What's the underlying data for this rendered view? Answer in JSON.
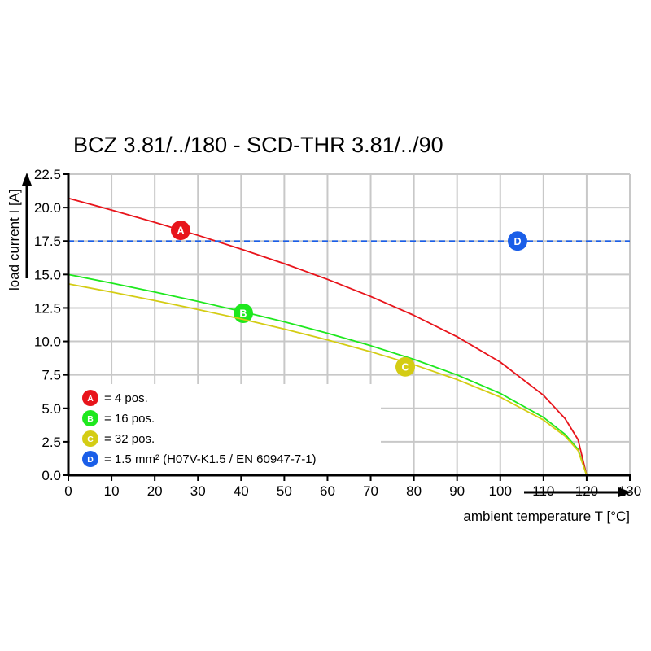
{
  "chart_data": {
    "type": "line",
    "title": "BCZ 3.81/../180 - SCD-THR 3.81/../90",
    "xlabel": "ambient temperature T [°C]",
    "ylabel": "load current I [A]",
    "xlim": [
      0,
      130
    ],
    "ylim": [
      0,
      22.5
    ],
    "xticks": [
      "0",
      "10",
      "20",
      "30",
      "40",
      "50",
      "60",
      "70",
      "80",
      "90",
      "100",
      "110",
      "120",
      "130"
    ],
    "yticks": [
      "0.0",
      "2.5",
      "5.0",
      "7.5",
      "10.0",
      "12.5",
      "15.0",
      "17.5",
      "20.0",
      "22.5"
    ],
    "grid": true,
    "legend_placement": "bottom-left",
    "x": [
      0,
      10,
      20,
      30,
      40,
      50,
      60,
      70,
      80,
      90,
      100,
      110,
      115,
      118,
      120
    ],
    "series": [
      {
        "marker": "A",
        "color": "#e8141b",
        "label_point": [
          26,
          18.3
        ],
        "values": [
          20.7,
          19.82,
          18.9,
          17.93,
          16.9,
          15.81,
          14.64,
          13.36,
          11.95,
          10.35,
          8.45,
          5.98,
          4.23,
          2.67,
          0
        ]
      },
      {
        "marker": "B",
        "color": "#1ee81e",
        "label_point": [
          40.5,
          12.1
        ],
        "values": [
          15.0,
          14.36,
          13.69,
          12.99,
          12.25,
          11.46,
          10.61,
          9.68,
          8.66,
          7.5,
          6.12,
          4.33,
          3.06,
          1.94,
          0
        ]
      },
      {
        "marker": "C",
        "color": "#d4cc14",
        "label_point": [
          78,
          8.1
        ],
        "values": [
          14.3,
          13.69,
          13.05,
          12.38,
          11.68,
          10.92,
          10.11,
          9.23,
          8.26,
          7.15,
          5.84,
          4.13,
          2.92,
          1.85,
          0
        ]
      },
      {
        "marker": "D",
        "color": "#1a5ee8",
        "dashed": true,
        "label_point": [
          104,
          17.5
        ],
        "constant": 17.5
      }
    ],
    "legend": [
      {
        "marker": "A",
        "color": "#e8141b",
        "text": "= 4 pos."
      },
      {
        "marker": "B",
        "color": "#1ee81e",
        "text": "= 16 pos."
      },
      {
        "marker": "C",
        "color": "#d4cc14",
        "text": "= 32 pos."
      },
      {
        "marker": "D",
        "color": "#1a5ee8",
        "text": "= 1.5 mm² (H07V-K1.5 / EN 60947-7-1)"
      }
    ]
  }
}
